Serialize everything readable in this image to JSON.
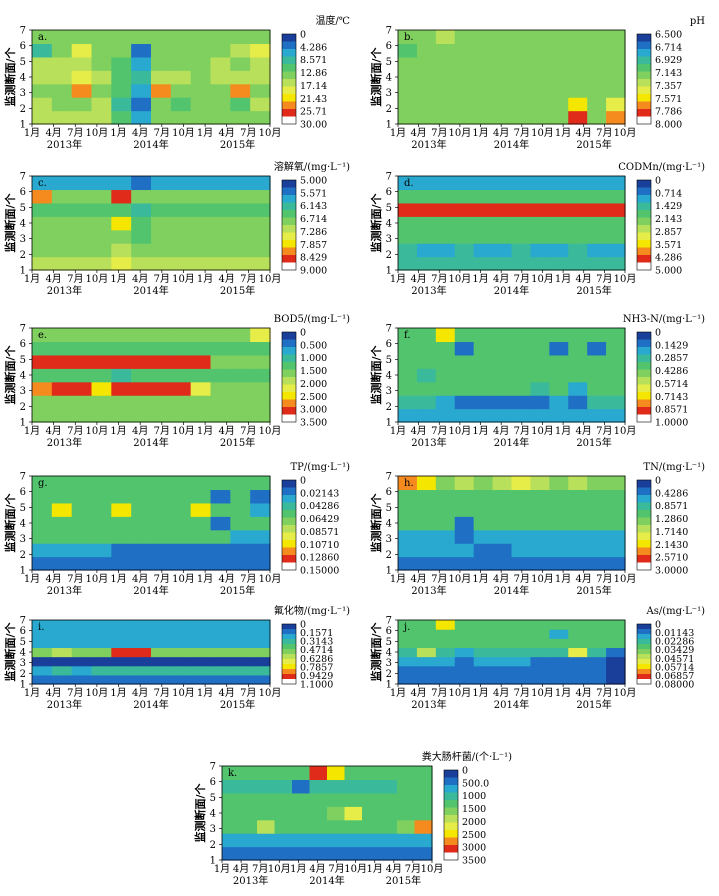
{
  "figure": {
    "y_axis_label": "监测断面/个",
    "x_tick_labels": [
      "1月",
      "4月",
      "7月",
      "10月",
      "1月",
      "4月",
      "7月",
      "10月",
      "1月",
      "4月",
      "7月",
      "10月"
    ],
    "year_labels": [
      "2013年",
      "2014年",
      "2015年"
    ],
    "y_ticks": [
      1,
      2,
      3,
      4,
      5,
      6,
      7
    ]
  },
  "colormap": [
    "#ffffff",
    "#e02a1a",
    "#f58a1e",
    "#f5e600",
    "#e6ec48",
    "#b9e05a",
    "#7fd05f",
    "#52c46e",
    "#3aba9a",
    "#29a9cf",
    "#1f6fc4",
    "#1a3f9a"
  ],
  "chart_data": [
    {
      "id": "a",
      "type": "heatmap",
      "panel_label": "a.",
      "title": "温度/℃",
      "xlabel": "",
      "ylabel": "监测断面/个",
      "ylim": [
        1,
        7
      ],
      "legend_ticks": [
        "0",
        "4.286",
        "8.571",
        "12.86",
        "17.14",
        "21.43",
        "25.71",
        "30.00"
      ],
      "z": [
        [
          5,
          5,
          5,
          5,
          7,
          9,
          6,
          6,
          6,
          6,
          6,
          6
        ],
        [
          5,
          6,
          6,
          5,
          8,
          10,
          6,
          7,
          6,
          6,
          7,
          5
        ],
        [
          6,
          6,
          2,
          6,
          7,
          9,
          2,
          6,
          6,
          6,
          2,
          6
        ],
        [
          5,
          5,
          4,
          5,
          7,
          8,
          5,
          5,
          6,
          5,
          5,
          5
        ],
        [
          5,
          5,
          5,
          6,
          7,
          9,
          6,
          6,
          6,
          5,
          6,
          5
        ],
        [
          8,
          6,
          4,
          6,
          6,
          10,
          6,
          6,
          6,
          6,
          5,
          4
        ],
        [
          6,
          6,
          6,
          6,
          6,
          6,
          6,
          6,
          6,
          6,
          6,
          6
        ]
      ]
    },
    {
      "id": "b",
      "type": "heatmap",
      "panel_label": "b.",
      "title": "pH",
      "xlabel": "",
      "ylabel": "监测断面/个",
      "ylim": [
        1,
        7
      ],
      "legend_ticks": [
        "6.500",
        "6.714",
        "6.929",
        "7.143",
        "7.357",
        "7.571",
        "7.786",
        "8.000"
      ],
      "z": [
        [
          6,
          6,
          6,
          6,
          6,
          6,
          6,
          6,
          6,
          1,
          6,
          2
        ],
        [
          6,
          6,
          6,
          6,
          6,
          6,
          6,
          6,
          6,
          3,
          6,
          4
        ],
        [
          6,
          6,
          6,
          6,
          6,
          6,
          6,
          6,
          6,
          6,
          6,
          6
        ],
        [
          6,
          6,
          6,
          6,
          6,
          6,
          6,
          6,
          6,
          6,
          6,
          6
        ],
        [
          6,
          6,
          6,
          6,
          6,
          6,
          6,
          6,
          6,
          6,
          6,
          6
        ],
        [
          7,
          6,
          6,
          6,
          6,
          6,
          6,
          6,
          6,
          6,
          6,
          6
        ],
        [
          6,
          6,
          5,
          6,
          6,
          6,
          6,
          6,
          6,
          6,
          6,
          6
        ]
      ]
    },
    {
      "id": "c",
      "type": "heatmap",
      "panel_label": "c.",
      "title": "溶解氧/(mg·L⁻¹)",
      "xlabel": "",
      "ylabel": "监测断面/个",
      "ylim": [
        1,
        7
      ],
      "legend_ticks": [
        "5.000",
        "5.571",
        "6.143",
        "6.714",
        "7.286",
        "7.857",
        "8.429",
        "9.000"
      ],
      "z": [
        [
          5,
          5,
          5,
          5,
          4,
          5,
          5,
          5,
          5,
          5,
          5,
          5
        ],
        [
          6,
          6,
          6,
          6,
          5,
          6,
          6,
          6,
          6,
          6,
          6,
          6
        ],
        [
          6,
          6,
          6,
          6,
          6,
          7,
          6,
          6,
          6,
          6,
          6,
          6
        ],
        [
          6,
          6,
          6,
          6,
          3,
          7,
          6,
          6,
          6,
          6,
          6,
          6
        ],
        [
          7,
          7,
          7,
          7,
          7,
          8,
          7,
          7,
          7,
          7,
          7,
          7
        ],
        [
          2,
          6,
          6,
          6,
          1,
          6,
          6,
          6,
          6,
          6,
          6,
          6
        ],
        [
          9,
          9,
          9,
          9,
          9,
          10,
          9,
          9,
          9,
          9,
          9,
          9
        ]
      ]
    },
    {
      "id": "d",
      "type": "heatmap",
      "panel_label": "d.",
      "title": "CODMn/(mg·L⁻¹)",
      "xlabel": "",
      "ylabel": "监测断面/个",
      "ylim": [
        1,
        7
      ],
      "legend_ticks": [
        "0",
        "0.714",
        "1.429",
        "2.143",
        "2.857",
        "3.571",
        "4.286",
        "5.000"
      ],
      "z": [
        [
          8,
          8,
          8,
          8,
          8,
          8,
          8,
          8,
          8,
          8,
          8,
          8
        ],
        [
          8,
          9,
          9,
          8,
          9,
          9,
          8,
          9,
          9,
          8,
          9,
          9
        ],
        [
          7,
          7,
          7,
          7,
          7,
          7,
          7,
          7,
          7,
          7,
          7,
          7
        ],
        [
          7,
          7,
          7,
          7,
          7,
          7,
          7,
          7,
          7,
          7,
          7,
          7
        ],
        [
          1,
          1,
          1,
          1,
          1,
          1,
          1,
          1,
          1,
          1,
          1,
          1
        ],
        [
          7,
          7,
          7,
          7,
          7,
          7,
          7,
          7,
          7,
          7,
          7,
          7
        ],
        [
          9,
          9,
          9,
          9,
          9,
          9,
          9,
          9,
          9,
          9,
          9,
          9
        ]
      ]
    },
    {
      "id": "e",
      "type": "heatmap",
      "panel_label": "e.",
      "title": "BOD5/(mg·L⁻¹)",
      "xlabel": "",
      "ylabel": "监测断面/个",
      "ylim": [
        1,
        7
      ],
      "legend_ticks": [
        "0",
        "0.500",
        "1.000",
        "1.500",
        "2.000",
        "2.500",
        "3.000",
        "3.500"
      ],
      "z": [
        [
          6,
          6,
          6,
          6,
          6,
          6,
          6,
          6,
          6,
          6,
          6,
          6
        ],
        [
          6,
          6,
          6,
          6,
          6,
          6,
          6,
          6,
          6,
          6,
          6,
          6
        ],
        [
          2,
          1,
          1,
          3,
          1,
          1,
          1,
          1,
          4,
          6,
          6,
          6
        ],
        [
          7,
          7,
          7,
          7,
          8,
          7,
          7,
          7,
          7,
          7,
          7,
          7
        ],
        [
          1,
          1,
          1,
          1,
          1,
          1,
          1,
          1,
          1,
          6,
          6,
          6
        ],
        [
          7,
          7,
          7,
          7,
          7,
          7,
          7,
          7,
          7,
          7,
          7,
          7
        ],
        [
          6,
          6,
          6,
          6,
          6,
          6,
          6,
          6,
          6,
          6,
          6,
          4
        ]
      ]
    },
    {
      "id": "f",
      "type": "heatmap",
      "panel_label": "f.",
      "title": "NH3-N/(mg·L⁻¹)",
      "xlabel": "",
      "ylabel": "监测断面/个",
      "ylim": [
        1,
        7
      ],
      "legend_ticks": [
        "0",
        "0.1429",
        "0.2857",
        "0.4286",
        "0.5714",
        "0.7143",
        "0.8571",
        "1.0000"
      ],
      "z": [
        [
          9,
          9,
          9,
          9,
          9,
          9,
          9,
          9,
          9,
          9,
          9,
          9
        ],
        [
          8,
          8,
          9,
          10,
          10,
          10,
          10,
          10,
          9,
          10,
          8,
          8
        ],
        [
          7,
          7,
          7,
          7,
          7,
          7,
          7,
          8,
          7,
          9,
          7,
          7
        ],
        [
          7,
          8,
          7,
          7,
          7,
          7,
          7,
          7,
          7,
          7,
          7,
          7
        ],
        [
          7,
          7,
          7,
          7,
          7,
          7,
          7,
          7,
          7,
          7,
          7,
          7
        ],
        [
          7,
          7,
          7,
          10,
          7,
          7,
          7,
          7,
          10,
          7,
          10,
          7
        ],
        [
          7,
          7,
          3,
          7,
          7,
          7,
          7,
          7,
          7,
          7,
          7,
          7
        ]
      ]
    },
    {
      "id": "g",
      "type": "heatmap",
      "panel_label": "g.",
      "title": "TP/(mg·L⁻¹)",
      "xlabel": "",
      "ylabel": "监测断面/个",
      "ylim": [
        1,
        7
      ],
      "legend_ticks": [
        "0",
        "0.02143",
        "0.04286",
        "0.06429",
        "0.08571",
        "0.10710",
        "0.12860",
        "0.15000"
      ],
      "z": [
        [
          10,
          10,
          10,
          10,
          10,
          10,
          10,
          10,
          10,
          10,
          10,
          10
        ],
        [
          9,
          9,
          9,
          9,
          10,
          10,
          10,
          10,
          10,
          10,
          10,
          10
        ],
        [
          7,
          7,
          7,
          7,
          7,
          7,
          7,
          7,
          7,
          7,
          9,
          9
        ],
        [
          7,
          7,
          7,
          7,
          7,
          7,
          7,
          7,
          7,
          10,
          7,
          7
        ],
        [
          7,
          3,
          7,
          7,
          3,
          7,
          7,
          7,
          3,
          7,
          7,
          9
        ],
        [
          7,
          7,
          7,
          7,
          7,
          7,
          7,
          7,
          7,
          10,
          7,
          10
        ],
        [
          7,
          7,
          7,
          7,
          7,
          7,
          7,
          7,
          7,
          7,
          7,
          7
        ]
      ]
    },
    {
      "id": "h",
      "type": "heatmap",
      "panel_label": "h.",
      "title": "TN/(mg·L⁻¹)",
      "xlabel": "",
      "ylabel": "监测断面/个",
      "ylim": [
        1,
        7
      ],
      "legend_ticks": [
        "0",
        "0.4286",
        "0.8571",
        "1.2860",
        "1.7140",
        "2.1430",
        "2.5710",
        "3.0000"
      ],
      "z": [
        [
          10,
          10,
          10,
          10,
          10,
          10,
          10,
          10,
          10,
          10,
          10,
          10
        ],
        [
          9,
          9,
          9,
          9,
          10,
          10,
          9,
          9,
          9,
          9,
          9,
          9
        ],
        [
          9,
          9,
          9,
          10,
          9,
          9,
          9,
          9,
          9,
          9,
          9,
          9
        ],
        [
          7,
          7,
          7,
          10,
          7,
          7,
          7,
          7,
          7,
          7,
          7,
          7
        ],
        [
          7,
          7,
          7,
          7,
          7,
          7,
          7,
          7,
          7,
          7,
          7,
          7
        ],
        [
          7,
          7,
          7,
          7,
          7,
          7,
          7,
          7,
          7,
          7,
          7,
          7
        ],
        [
          2,
          3,
          6,
          5,
          6,
          5,
          4,
          5,
          6,
          5,
          6,
          6
        ]
      ]
    },
    {
      "id": "i",
      "type": "heatmap",
      "panel_label": "i.",
      "title": "氟化物/(mg·L⁻¹)",
      "xlabel": "",
      "ylabel": "监测断面/个",
      "ylim": [
        1,
        7
      ],
      "legend_ticks": [
        "0",
        "0.1571",
        "0.3143",
        "0.4714",
        "0.6286",
        "0.7857",
        "0.9429",
        "1.1000"
      ],
      "z": [
        [
          10,
          10,
          10,
          10,
          10,
          10,
          10,
          10,
          10,
          10,
          10,
          10
        ],
        [
          9,
          8,
          9,
          8,
          8,
          8,
          8,
          8,
          8,
          8,
          8,
          8
        ],
        [
          11,
          11,
          11,
          11,
          11,
          11,
          11,
          11,
          11,
          11,
          11,
          11
        ],
        [
          6,
          5,
          6,
          6,
          1,
          1,
          6,
          6,
          6,
          6,
          6,
          6
        ],
        [
          9,
          9,
          9,
          9,
          9,
          9,
          9,
          9,
          9,
          9,
          9,
          9
        ],
        [
          9,
          9,
          9,
          9,
          9,
          9,
          9,
          9,
          9,
          9,
          9,
          9
        ],
        [
          9,
          9,
          9,
          9,
          9,
          9,
          9,
          9,
          9,
          9,
          9,
          9
        ]
      ]
    },
    {
      "id": "j",
      "type": "heatmap",
      "panel_label": "j.",
      "title": "As/(mg·L⁻¹)",
      "xlabel": "",
      "ylabel": "监测断面/个",
      "ylim": [
        1,
        7
      ],
      "legend_ticks": [
        "0",
        "0.01143",
        "0.02286",
        "0.03429",
        "0.04571",
        "0.05714",
        "0.06857",
        "0.08000"
      ],
      "z": [
        [
          10,
          10,
          10,
          10,
          10,
          10,
          10,
          10,
          10,
          10,
          10,
          11
        ],
        [
          10,
          10,
          10,
          10,
          10,
          10,
          10,
          10,
          10,
          10,
          10,
          11
        ],
        [
          9,
          9,
          9,
          10,
          9,
          9,
          9,
          10,
          10,
          10,
          10,
          11
        ],
        [
          8,
          5,
          8,
          9,
          8,
          8,
          8,
          8,
          8,
          4,
          8,
          10
        ],
        [
          7,
          7,
          7,
          7,
          7,
          7,
          7,
          7,
          7,
          7,
          7,
          7
        ],
        [
          7,
          7,
          7,
          7,
          7,
          7,
          7,
          7,
          9,
          7,
          7,
          7
        ],
        [
          7,
          7,
          3,
          7,
          7,
          7,
          7,
          7,
          7,
          7,
          7,
          7
        ]
      ]
    },
    {
      "id": "k",
      "type": "heatmap",
      "panel_label": "k.",
      "title": "粪大肠杆菌/(个·L⁻¹)",
      "xlabel": "",
      "ylabel": "监测断面/个",
      "ylim": [
        1,
        7
      ],
      "legend_ticks": [
        "0",
        "500.0",
        "1000",
        "1500",
        "2000",
        "2500",
        "3000",
        "3500"
      ],
      "z": [
        [
          10,
          10,
          10,
          10,
          10,
          10,
          10,
          10,
          10,
          10,
          10,
          10
        ],
        [
          9,
          9,
          9,
          9,
          9,
          9,
          9,
          9,
          9,
          9,
          9,
          9
        ],
        [
          7,
          7,
          5,
          7,
          7,
          7,
          7,
          7,
          7,
          7,
          6,
          2
        ],
        [
          7,
          7,
          7,
          7,
          7,
          7,
          6,
          4,
          7,
          7,
          7,
          7
        ],
        [
          7,
          7,
          7,
          7,
          7,
          7,
          7,
          7,
          7,
          7,
          7,
          7
        ],
        [
          8,
          8,
          8,
          8,
          10,
          8,
          8,
          8,
          8,
          8,
          7,
          7
        ],
        [
          7,
          7,
          7,
          7,
          7,
          1,
          3,
          7,
          7,
          7,
          7,
          7
        ]
      ]
    }
  ]
}
